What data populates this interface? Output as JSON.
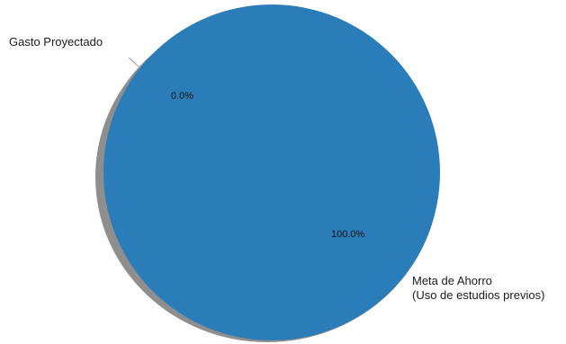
{
  "chart_data": {
    "type": "pie",
    "categories": [
      "Gasto Proyectado",
      "Meta de Ahorro (Uso de estudios previos)"
    ],
    "label_lines": [
      [
        "Gasto Proyectado"
      ],
      [
        "Meta de Ahorro",
        "(Uso de estudios previos)"
      ]
    ],
    "values": [
      0.0,
      100.0
    ],
    "percent_labels": [
      "0.0%",
      "100.0%"
    ],
    "colors": [
      "#f28e2b",
      "#2a7db8"
    ],
    "shadow": true,
    "title": ""
  }
}
